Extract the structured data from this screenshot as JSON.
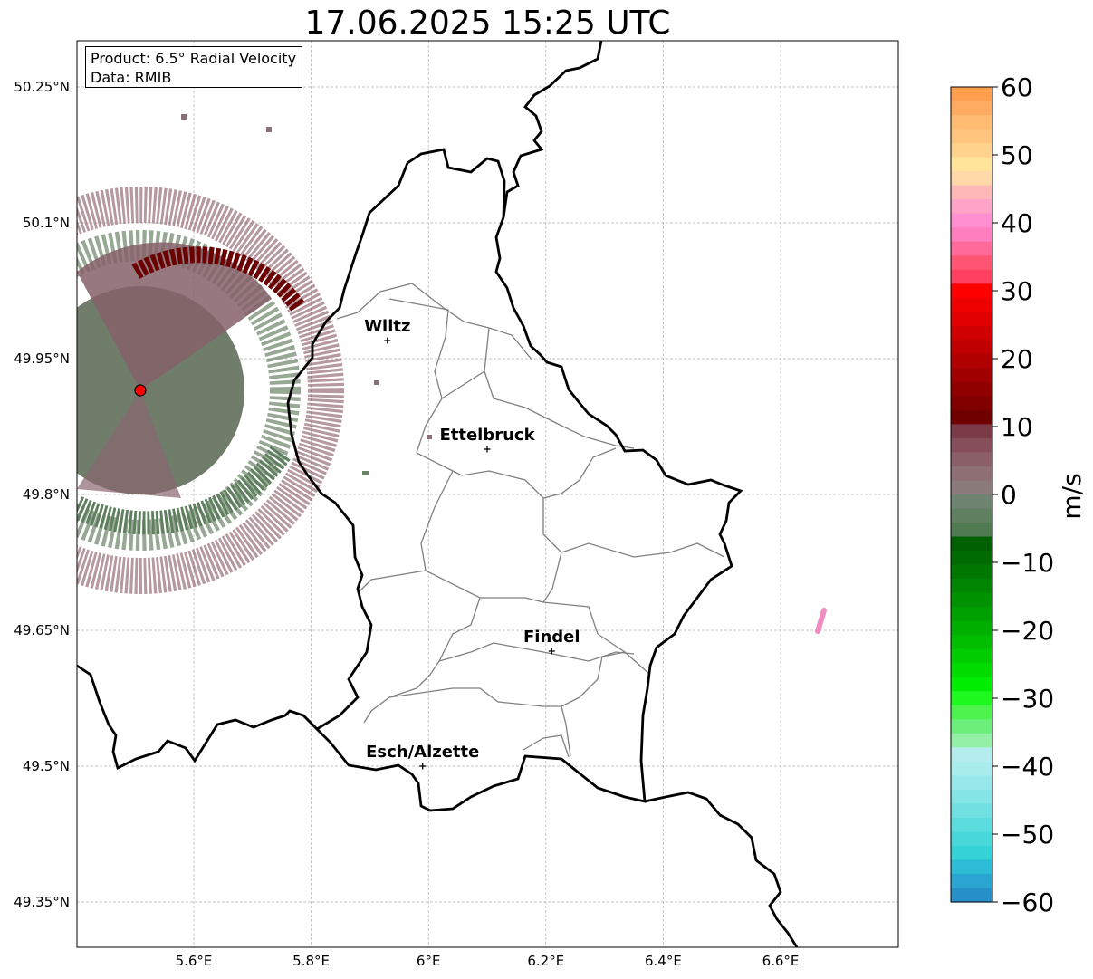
{
  "title": "17.06.2025 15:25 UTC",
  "info": {
    "product": "Product: 6.5° Radial Velocity",
    "data_source": "Data: RMIB"
  },
  "axes": {
    "lon_ticks": [
      {
        "value": 5.6,
        "label": "5.6°E"
      },
      {
        "value": 5.8,
        "label": "5.8°E"
      },
      {
        "value": 6.0,
        "label": "6°E"
      },
      {
        "value": 6.2,
        "label": "6.2°E"
      },
      {
        "value": 6.4,
        "label": "6.4°E"
      },
      {
        "value": 6.6,
        "label": "6.6°E"
      }
    ],
    "lat_ticks": [
      {
        "value": 50.25,
        "label": "50.25°N"
      },
      {
        "value": 50.1,
        "label": "50.1°N"
      },
      {
        "value": 49.95,
        "label": "49.95°N"
      },
      {
        "value": 49.8,
        "label": "49.8°N"
      },
      {
        "value": 49.65,
        "label": "49.65°N"
      },
      {
        "value": 49.5,
        "label": "49.5°N"
      },
      {
        "value": 49.35,
        "label": "49.35°N"
      }
    ],
    "lon_range": [
      5.4,
      6.8
    ],
    "lat_range": [
      49.3,
      50.3
    ],
    "grid": true
  },
  "cities": [
    {
      "name": "Wiltz",
      "lon": 5.93,
      "lat": 49.97
    },
    {
      "name": "Ettelbruck",
      "lon": 6.1,
      "lat": 49.85
    },
    {
      "name": "Findel",
      "lon": 6.21,
      "lat": 49.627
    },
    {
      "name": "Esch/Alzette",
      "lon": 5.99,
      "lat": 49.5
    }
  ],
  "radar": {
    "lon": 5.506,
    "lat": 49.915,
    "marker_color": "#ff0000"
  },
  "colorbar": {
    "label": "m/s",
    "min": -60,
    "max": 60,
    "ticks": [
      {
        "value": 60,
        "label": "60"
      },
      {
        "value": 50,
        "label": "50"
      },
      {
        "value": 40,
        "label": "40"
      },
      {
        "value": 30,
        "label": "30"
      },
      {
        "value": 20,
        "label": "20"
      },
      {
        "value": 10,
        "label": "10"
      },
      {
        "value": 0,
        "label": "0"
      },
      {
        "value": -10,
        "label": "−10"
      },
      {
        "value": -20,
        "label": "−20"
      },
      {
        "value": -30,
        "label": "−30"
      },
      {
        "value": -40,
        "label": "−40"
      },
      {
        "value": -50,
        "label": "−50"
      },
      {
        "value": -60,
        "label": "−60"
      }
    ],
    "colors_top_to_bottom": [
      "#ff9e4f",
      "#ffab62",
      "#ffbb72",
      "#ffc57e",
      "#ffd38b",
      "#ffe49a",
      "#ffd9a8",
      "#ffb8b8",
      "#ffa3c8",
      "#ff8fd0",
      "#ff7fbe",
      "#ff6a9a",
      "#ff5575",
      "#ff4060",
      "#ff0000",
      "#ef0000",
      "#e00000",
      "#d00000",
      "#c00000",
      "#b00000",
      "#a00000",
      "#900000",
      "#800000",
      "#700000",
      "#7a3a48",
      "#854e5a",
      "#8a5f68",
      "#8d6f74",
      "#8a7a7a",
      "#6f8470",
      "#5f7f60",
      "#4f7a52",
      "#005f00",
      "#006b00",
      "#007800",
      "#008500",
      "#009200",
      "#009f00",
      "#00ae00",
      "#00bd00",
      "#00cc00",
      "#00dc00",
      "#00ec00",
      "#1ff81f",
      "#4ef34e",
      "#6cee7a",
      "#93f0a6",
      "#b5ecee",
      "#a8ecec",
      "#96e8ea",
      "#84e4e6",
      "#70e0e2",
      "#5cdcde",
      "#48d8da",
      "#34d4d6",
      "#2cbcd6",
      "#2aa4d0",
      "#2890c8"
    ]
  }
}
